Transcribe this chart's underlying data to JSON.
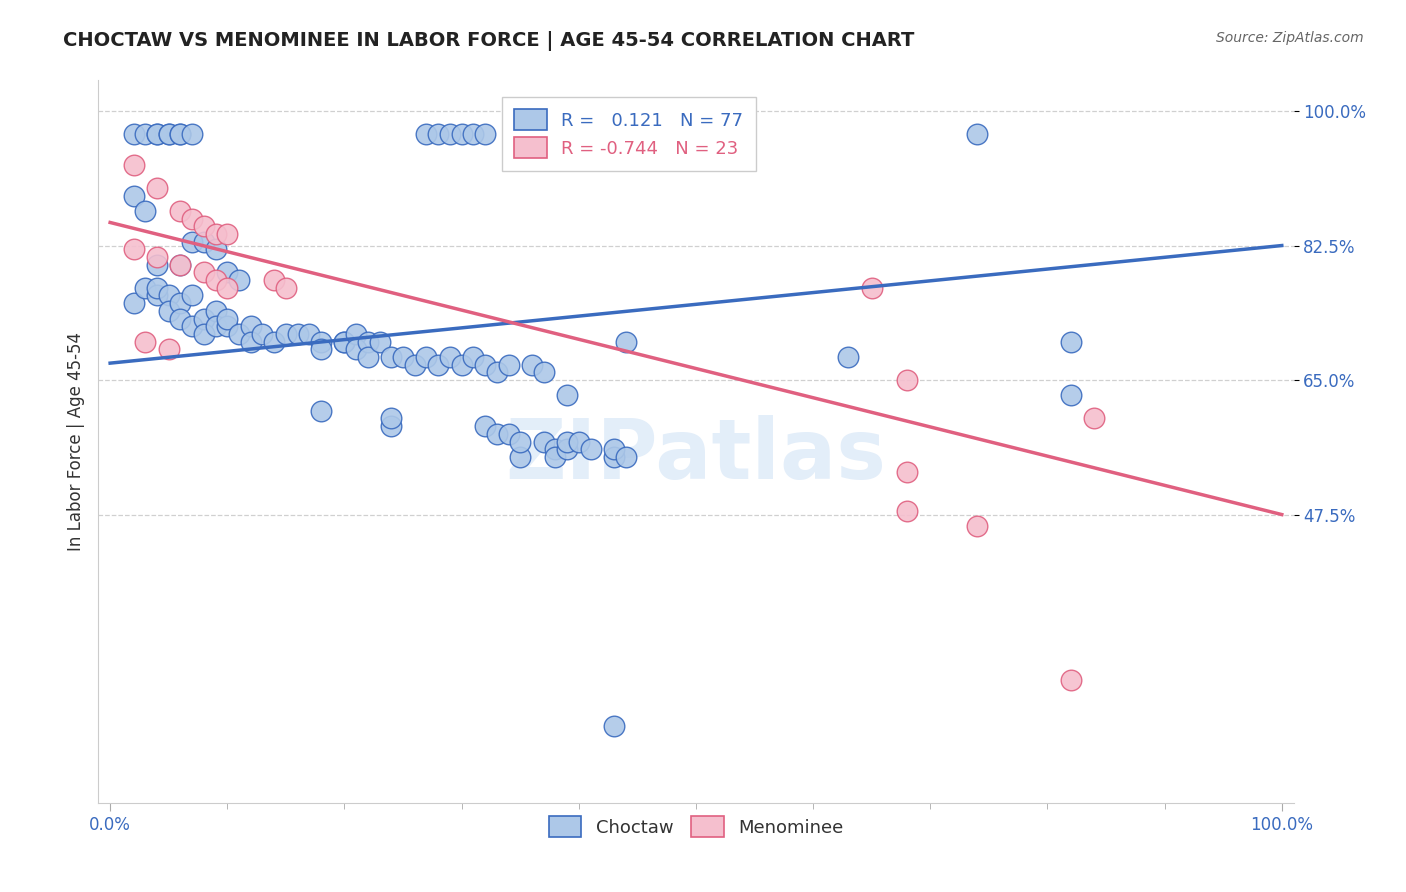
{
  "title": "CHOCTAW VS MENOMINEE IN LABOR FORCE | AGE 45-54 CORRELATION CHART",
  "source": "Source: ZipAtlas.com",
  "ylabel": "In Labor Force | Age 45-54",
  "choctaw_R": 0.121,
  "choctaw_N": 77,
  "menominee_R": -0.744,
  "menominee_N": 23,
  "choctaw_color": "#adc8e8",
  "menominee_color": "#f5bfce",
  "choctaw_line_color": "#3a6bbf",
  "menominee_line_color": "#e06080",
  "title_color": "#222222",
  "source_color": "#666666",
  "watermark": "ZIPatlas",
  "xlim": [
    -0.01,
    1.01
  ],
  "ylim": [
    0.1,
    1.04
  ],
  "ytick_positions": [
    0.475,
    0.65,
    0.825,
    1.0
  ],
  "ytick_labels": [
    "47.5%",
    "65.0%",
    "82.5%",
    "100.0%"
  ],
  "xtick_positions": [
    0.0,
    1.0
  ],
  "xtick_labels": [
    "0.0%",
    "100.0%"
  ],
  "grid_color": "#d0d0d0",
  "choctaw_points": [
    [
      0.02,
      0.97
    ],
    [
      0.03,
      0.97
    ],
    [
      0.04,
      0.97
    ],
    [
      0.04,
      0.97
    ],
    [
      0.05,
      0.97
    ],
    [
      0.05,
      0.97
    ],
    [
      0.06,
      0.97
    ],
    [
      0.06,
      0.97
    ],
    [
      0.07,
      0.97
    ],
    [
      0.27,
      0.97
    ],
    [
      0.28,
      0.97
    ],
    [
      0.29,
      0.97
    ],
    [
      0.3,
      0.97
    ],
    [
      0.31,
      0.97
    ],
    [
      0.32,
      0.97
    ],
    [
      0.74,
      0.97
    ],
    [
      0.02,
      0.89
    ],
    [
      0.03,
      0.87
    ],
    [
      0.04,
      0.8
    ],
    [
      0.06,
      0.8
    ],
    [
      0.07,
      0.83
    ],
    [
      0.08,
      0.83
    ],
    [
      0.09,
      0.82
    ],
    [
      0.1,
      0.79
    ],
    [
      0.11,
      0.78
    ],
    [
      0.02,
      0.75
    ],
    [
      0.03,
      0.77
    ],
    [
      0.04,
      0.76
    ],
    [
      0.04,
      0.77
    ],
    [
      0.05,
      0.76
    ],
    [
      0.05,
      0.74
    ],
    [
      0.06,
      0.75
    ],
    [
      0.06,
      0.73
    ],
    [
      0.07,
      0.76
    ],
    [
      0.07,
      0.72
    ],
    [
      0.08,
      0.73
    ],
    [
      0.08,
      0.71
    ],
    [
      0.09,
      0.74
    ],
    [
      0.09,
      0.72
    ],
    [
      0.1,
      0.72
    ],
    [
      0.1,
      0.73
    ],
    [
      0.11,
      0.71
    ],
    [
      0.12,
      0.72
    ],
    [
      0.12,
      0.7
    ],
    [
      0.13,
      0.71
    ],
    [
      0.14,
      0.7
    ],
    [
      0.15,
      0.71
    ],
    [
      0.16,
      0.71
    ],
    [
      0.17,
      0.71
    ],
    [
      0.18,
      0.7
    ],
    [
      0.18,
      0.69
    ],
    [
      0.2,
      0.7
    ],
    [
      0.2,
      0.7
    ],
    [
      0.21,
      0.71
    ],
    [
      0.21,
      0.69
    ],
    [
      0.22,
      0.7
    ],
    [
      0.22,
      0.68
    ],
    [
      0.23,
      0.7
    ],
    [
      0.24,
      0.68
    ],
    [
      0.25,
      0.68
    ],
    [
      0.26,
      0.67
    ],
    [
      0.27,
      0.68
    ],
    [
      0.28,
      0.67
    ],
    [
      0.29,
      0.68
    ],
    [
      0.3,
      0.67
    ],
    [
      0.31,
      0.68
    ],
    [
      0.32,
      0.67
    ],
    [
      0.33,
      0.66
    ],
    [
      0.34,
      0.67
    ],
    [
      0.36,
      0.67
    ],
    [
      0.37,
      0.66
    ],
    [
      0.39,
      0.63
    ],
    [
      0.44,
      0.7
    ],
    [
      0.18,
      0.61
    ],
    [
      0.24,
      0.59
    ],
    [
      0.24,
      0.6
    ],
    [
      0.32,
      0.59
    ],
    [
      0.33,
      0.58
    ],
    [
      0.34,
      0.58
    ],
    [
      0.35,
      0.55
    ],
    [
      0.35,
      0.57
    ],
    [
      0.37,
      0.57
    ],
    [
      0.38,
      0.56
    ],
    [
      0.38,
      0.55
    ],
    [
      0.39,
      0.56
    ],
    [
      0.39,
      0.57
    ],
    [
      0.4,
      0.57
    ],
    [
      0.41,
      0.56
    ],
    [
      0.43,
      0.55
    ],
    [
      0.43,
      0.56
    ],
    [
      0.44,
      0.55
    ],
    [
      0.63,
      0.68
    ],
    [
      0.82,
      0.7
    ],
    [
      0.82,
      0.63
    ],
    [
      0.43,
      0.2
    ]
  ],
  "menominee_points": [
    [
      0.02,
      0.93
    ],
    [
      0.04,
      0.9
    ],
    [
      0.06,
      0.87
    ],
    [
      0.07,
      0.86
    ],
    [
      0.08,
      0.85
    ],
    [
      0.09,
      0.84
    ],
    [
      0.1,
      0.84
    ],
    [
      0.02,
      0.82
    ],
    [
      0.04,
      0.81
    ],
    [
      0.06,
      0.8
    ],
    [
      0.08,
      0.79
    ],
    [
      0.09,
      0.78
    ],
    [
      0.1,
      0.77
    ],
    [
      0.14,
      0.78
    ],
    [
      0.15,
      0.77
    ],
    [
      0.65,
      0.77
    ],
    [
      0.03,
      0.7
    ],
    [
      0.05,
      0.69
    ],
    [
      0.68,
      0.65
    ],
    [
      0.84,
      0.6
    ],
    [
      0.68,
      0.53
    ],
    [
      0.68,
      0.48
    ],
    [
      0.74,
      0.46
    ],
    [
      0.82,
      0.26
    ]
  ],
  "choctaw_line_x": [
    0.0,
    1.0
  ],
  "choctaw_line_y": [
    0.672,
    0.825
  ],
  "menominee_line_x": [
    0.0,
    1.0
  ],
  "menominee_line_y": [
    0.855,
    0.475
  ],
  "figsize": [
    14.06,
    8.92
  ],
  "dpi": 100
}
